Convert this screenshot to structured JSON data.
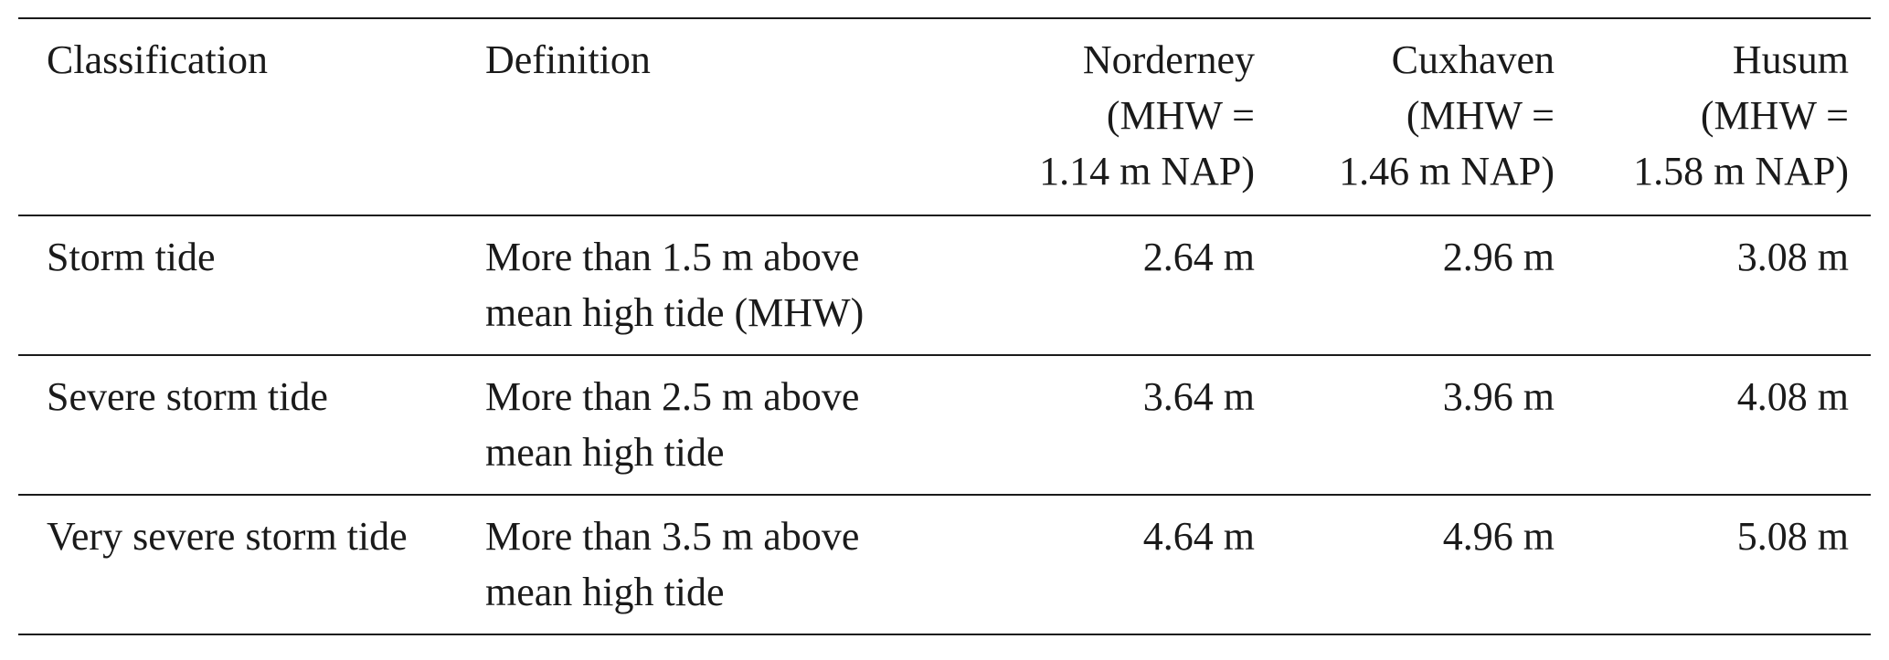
{
  "table": {
    "headers": {
      "classification": "Classification",
      "definition": "Definition",
      "norderney": [
        "Norderney",
        "(MHW =",
        "1.14 m NAP)"
      ],
      "cuxhaven": [
        "Cuxhaven",
        "(MHW =",
        "1.46 m NAP)"
      ],
      "husum": [
        "Husum",
        "(MHW =",
        "1.58 m NAP)"
      ]
    },
    "rows": [
      {
        "classification": "Storm tide",
        "definition": [
          "More than 1.5 m above",
          "mean high tide (MHW)"
        ],
        "norderney": "2.64 m",
        "cuxhaven": "2.96 m",
        "husum": "3.08 m"
      },
      {
        "classification": "Severe storm tide",
        "definition": [
          "More than 2.5 m above",
          "mean high tide"
        ],
        "norderney": "3.64 m",
        "cuxhaven": "3.96 m",
        "husum": "4.08 m"
      },
      {
        "classification": "Very severe storm tide",
        "definition": [
          "More than 3.5 m above",
          "mean high tide"
        ],
        "norderney": "4.64 m",
        "cuxhaven": "4.96 m",
        "husum": "5.08 m"
      }
    ]
  }
}
